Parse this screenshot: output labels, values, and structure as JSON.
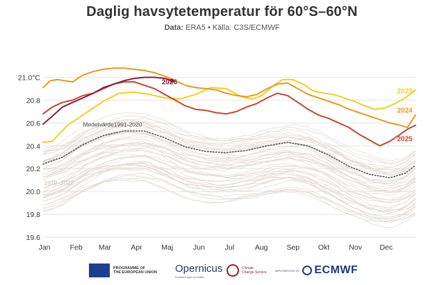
{
  "header": {
    "title": "Daglig havsytetemperatur för 60°S–60°N",
    "subtitle_prefix": "Data:",
    "subtitle_rest": " ERA5 • Källa: C3S/ECMWF"
  },
  "chart_data": {
    "type": "line",
    "title": "Daglig havsytetemperatur för 60°S–60°N",
    "xlabel": "",
    "ylabel": "",
    "x_ticks": [
      "Jan",
      "Feb",
      "Mar",
      "Apr",
      "Maj",
      "Jun",
      "Jul",
      "Aug",
      "Sep",
      "Okt",
      "Nov",
      "Dec"
    ],
    "y_ticks": [
      "21.0°C",
      "20.8",
      "20.6",
      "20.4",
      "20.2",
      "20.0",
      "19.8",
      "19.6"
    ],
    "ylim": [
      19.6,
      21.1
    ],
    "xlim_day": [
      1,
      365
    ],
    "grid": "horizontal",
    "series": [
      {
        "name": "2023",
        "color": "#f2cf1a",
        "points": [
          [
            1,
            20.43
          ],
          [
            10,
            20.44
          ],
          [
            25,
            20.58
          ],
          [
            45,
            20.7
          ],
          [
            60,
            20.79
          ],
          [
            75,
            20.86
          ],
          [
            90,
            20.87
          ],
          [
            105,
            20.85
          ],
          [
            120,
            20.82
          ],
          [
            135,
            20.81
          ],
          [
            150,
            20.85
          ],
          [
            165,
            20.91
          ],
          [
            180,
            20.9
          ],
          [
            195,
            20.83
          ],
          [
            205,
            20.81
          ],
          [
            215,
            20.84
          ],
          [
            225,
            20.92
          ],
          [
            235,
            20.98
          ],
          [
            245,
            20.98
          ],
          [
            255,
            20.94
          ],
          [
            265,
            20.88
          ],
          [
            275,
            20.86
          ],
          [
            285,
            20.85
          ],
          [
            295,
            20.82
          ],
          [
            305,
            20.79
          ],
          [
            315,
            20.75
          ],
          [
            325,
            20.72
          ],
          [
            335,
            20.73
          ],
          [
            345,
            20.77
          ],
          [
            355,
            20.82
          ],
          [
            365,
            20.89
          ]
        ]
      },
      {
        "name": "2024",
        "color": "#e89a17",
        "points": [
          [
            1,
            20.91
          ],
          [
            8,
            20.97
          ],
          [
            15,
            20.98
          ],
          [
            22,
            20.97
          ],
          [
            30,
            20.96
          ],
          [
            40,
            21.02
          ],
          [
            50,
            21.05
          ],
          [
            60,
            21.07
          ],
          [
            70,
            21.08
          ],
          [
            80,
            21.08
          ],
          [
            90,
            21.07
          ],
          [
            100,
            21.06
          ],
          [
            110,
            21.04
          ],
          [
            120,
            21.01
          ],
          [
            130,
            20.97
          ],
          [
            140,
            20.93
          ],
          [
            150,
            20.91
          ],
          [
            160,
            20.9
          ],
          [
            170,
            20.89
          ],
          [
            180,
            20.86
          ],
          [
            190,
            20.84
          ],
          [
            200,
            20.83
          ],
          [
            210,
            20.85
          ],
          [
            220,
            20.9
          ],
          [
            230,
            20.94
          ],
          [
            240,
            20.95
          ],
          [
            250,
            20.9
          ],
          [
            260,
            20.85
          ],
          [
            270,
            20.82
          ],
          [
            280,
            20.79
          ],
          [
            290,
            20.76
          ],
          [
            300,
            20.72
          ],
          [
            310,
            20.69
          ],
          [
            320,
            20.66
          ],
          [
            330,
            20.63
          ],
          [
            340,
            20.6
          ],
          [
            350,
            20.58
          ],
          [
            357,
            20.56
          ],
          [
            365,
            20.67
          ]
        ]
      },
      {
        "name": "2025",
        "color": "#c8452a",
        "points": [
          [
            1,
            20.68
          ],
          [
            10,
            20.74
          ],
          [
            20,
            20.78
          ],
          [
            30,
            20.8
          ],
          [
            40,
            20.84
          ],
          [
            50,
            20.86
          ],
          [
            60,
            20.9
          ],
          [
            70,
            20.94
          ],
          [
            80,
            20.96
          ],
          [
            90,
            20.96
          ],
          [
            100,
            20.93
          ],
          [
            110,
            20.9
          ],
          [
            120,
            20.85
          ],
          [
            130,
            20.8
          ],
          [
            140,
            20.75
          ],
          [
            150,
            20.72
          ],
          [
            160,
            20.71
          ],
          [
            170,
            20.69
          ],
          [
            180,
            20.68
          ],
          [
            190,
            20.7
          ],
          [
            200,
            20.74
          ],
          [
            210,
            20.77
          ],
          [
            220,
            20.82
          ],
          [
            230,
            20.86
          ],
          [
            240,
            20.84
          ],
          [
            250,
            20.78
          ],
          [
            260,
            20.72
          ],
          [
            270,
            20.67
          ],
          [
            280,
            20.64
          ],
          [
            290,
            20.6
          ],
          [
            300,
            20.56
          ],
          [
            310,
            20.5
          ],
          [
            320,
            20.45
          ],
          [
            330,
            20.4
          ],
          [
            340,
            20.44
          ],
          [
            350,
            20.5
          ],
          [
            358,
            20.55
          ],
          [
            365,
            20.58
          ]
        ]
      },
      {
        "name": "2026",
        "color": "#8f1a3a",
        "points": [
          [
            1,
            20.59
          ],
          [
            10,
            20.66
          ],
          [
            20,
            20.74
          ],
          [
            30,
            20.78
          ],
          [
            40,
            20.82
          ],
          [
            50,
            20.86
          ],
          [
            60,
            20.91
          ],
          [
            70,
            20.94
          ],
          [
            80,
            20.97
          ],
          [
            90,
            20.99
          ],
          [
            100,
            21.0
          ],
          [
            110,
            21.0
          ],
          [
            120,
            20.99
          ],
          [
            127,
            20.97
          ]
        ]
      },
      {
        "name": "Medelvärde1991-2020",
        "color": "#555555",
        "points": [
          [
            1,
            20.24
          ],
          [
            20,
            20.3
          ],
          [
            40,
            20.41
          ],
          [
            60,
            20.49
          ],
          [
            80,
            20.53
          ],
          [
            100,
            20.53
          ],
          [
            120,
            20.47
          ],
          [
            140,
            20.39
          ],
          [
            160,
            20.35
          ],
          [
            180,
            20.34
          ],
          [
            200,
            20.36
          ],
          [
            220,
            20.4
          ],
          [
            240,
            20.43
          ],
          [
            260,
            20.4
          ],
          [
            280,
            20.32
          ],
          [
            300,
            20.22
          ],
          [
            320,
            20.15
          ],
          [
            340,
            20.12
          ],
          [
            355,
            20.16
          ],
          [
            365,
            20.23
          ]
        ]
      }
    ],
    "labels": {
      "y2023": "2023",
      "y2024": "2024",
      "y2025": "2025",
      "y2026": "2026",
      "mean": "Medelvärde1991-2020",
      "range": "1979–2022"
    }
  },
  "footer": {
    "eu_text": "PROGRAMME OF\nTHE EUROPEAN UNION",
    "copernicus": "Opernicus",
    "copernicus_sub": "Europe's eyes on Earth",
    "c3s_text": "Climate\nChange Service",
    "implemented_by": "IMPLEMENTED BY",
    "ecmwf": "ECMWF"
  },
  "colors": {
    "background_lines": "#e3d8d3",
    "grid": "#e6e6e6",
    "title": "#333333"
  }
}
